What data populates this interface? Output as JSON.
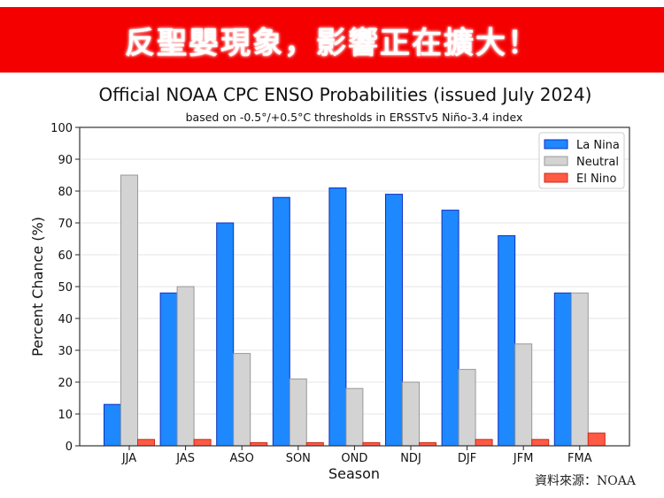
{
  "banner": {
    "text": "反聖嬰現象，影響正在擴大！",
    "color": "#f40000"
  },
  "source": "資料來源：NOAA",
  "chart_data": {
    "type": "bar",
    "title": "Official NOAA CPC ENSO Probabilities (issued July 2024)",
    "subtitle": "based on -0.5°/+0.5°C thresholds in ERSSTv5 Niño-3.4 index",
    "xlabel": "Season",
    "ylabel": "Percent Chance (%)",
    "ylim": [
      0,
      100
    ],
    "yticks": [
      0,
      10,
      20,
      30,
      40,
      50,
      60,
      70,
      80,
      90,
      100
    ],
    "grid": true,
    "legend_position": "top-right",
    "categories": [
      "JJA",
      "JAS",
      "ASO",
      "SON",
      "OND",
      "NDJ",
      "DJF",
      "JFM",
      "FMA"
    ],
    "series": [
      {
        "name": "La Nina",
        "color": "#1e88ff",
        "edge": "#1030c0",
        "values": [
          13,
          48,
          70,
          78,
          81,
          79,
          74,
          66,
          48
        ]
      },
      {
        "name": "Neutral",
        "color": "#d3d3d3",
        "edge": "#999999",
        "values": [
          85,
          50,
          29,
          21,
          18,
          20,
          24,
          32,
          48
        ]
      },
      {
        "name": "El Nino",
        "color": "#ff5a45",
        "edge": "#cc2a1a",
        "values": [
          2,
          2,
          1,
          1,
          1,
          1,
          2,
          2,
          4
        ]
      }
    ]
  }
}
